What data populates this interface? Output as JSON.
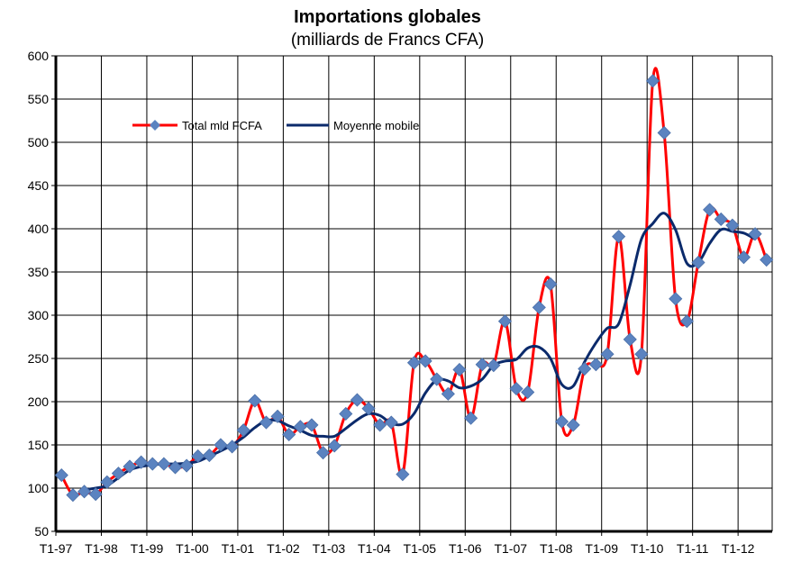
{
  "chart_data": {
    "type": "line",
    "title": "Importations globales",
    "subtitle": "(milliards de Francs CFA)",
    "xlabel": "",
    "ylabel": "",
    "ylim": [
      50,
      600
    ],
    "yticks": [
      50,
      100,
      150,
      200,
      250,
      300,
      350,
      400,
      450,
      500,
      550,
      600
    ],
    "grid": true,
    "legend_position": "top-left",
    "x_tick_labels": [
      "T1-97",
      "T1-98",
      "T1-99",
      "T1-00",
      "T1-01",
      "T1-02",
      "T1-03",
      "T1-04",
      "T1-05",
      "T1-06",
      "T1-07",
      "T1-08",
      "T1-09",
      "T1-10",
      "T1-11",
      "T1-12"
    ],
    "series": [
      {
        "name": "Total mld FCFA",
        "color": "#ff0000",
        "marker_color": "#5b83c0",
        "marker": "diamond",
        "values": [
          115,
          92,
          96,
          93,
          107,
          117,
          125,
          130,
          128,
          128,
          124,
          126,
          137,
          138,
          150,
          148,
          167,
          201,
          176,
          183,
          162,
          171,
          173,
          141,
          149,
          186,
          202,
          192,
          173,
          176,
          116,
          245,
          247,
          226,
          209,
          237,
          181,
          243,
          242,
          293,
          215,
          211,
          309,
          336,
          177,
          173,
          238,
          243,
          255,
          391,
          272,
          255,
          571,
          511,
          319,
          293,
          361,
          422,
          411,
          404,
          367,
          394,
          364
        ]
      },
      {
        "name": "Moyenne mobile",
        "color": "#0b2a6b",
        "values": [
          null,
          null,
          98,
          100,
          103,
          112,
          121,
          125,
          127,
          128,
          128,
          129,
          131,
          137,
          143,
          150,
          159,
          170,
          178,
          178,
          172,
          167,
          161,
          160,
          160,
          169,
          179,
          186,
          184,
          175,
          174,
          186,
          210,
          225,
          224,
          216,
          218,
          226,
          242,
          247,
          249,
          262,
          263,
          250,
          220,
          218,
          246,
          268,
          285,
          290,
          335,
          388,
          406,
          418,
          399,
          360,
          361,
          383,
          399,
          397,
          395,
          388,
          null
        ]
      }
    ]
  }
}
